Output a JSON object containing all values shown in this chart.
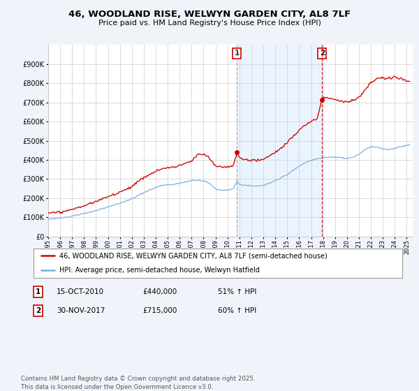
{
  "title": "46, WOODLAND RISE, WELWYN GARDEN CITY, AL8 7LF",
  "subtitle": "Price paid vs. HM Land Registry's House Price Index (HPI)",
  "property_label": "46, WOODLAND RISE, WELWYN GARDEN CITY, AL8 7LF (semi-detached house)",
  "hpi_label": "HPI: Average price, semi-detached house, Welwyn Hatfield",
  "footnote": "Contains HM Land Registry data © Crown copyright and database right 2025.\nThis data is licensed under the Open Government Licence v3.0.",
  "sale1_date": "15-OCT-2010",
  "sale1_price": "£440,000",
  "sale1_hpi": "51% ↑ HPI",
  "sale2_date": "30-NOV-2017",
  "sale2_price": "£715,000",
  "sale2_hpi": "60% ↑ HPI",
  "property_color": "#cc0000",
  "hpi_color": "#7aaadd",
  "vline1_color": "#aaaaaa",
  "vline2_color": "#cc0000",
  "shade_color": "#ddeeff",
  "background_color": "#f0f4fa",
  "plot_bg_color": "#ffffff",
  "ylim": [
    0,
    1000000
  ],
  "yticks": [
    0,
    100000,
    200000,
    300000,
    400000,
    500000,
    600000,
    700000,
    800000,
    900000
  ],
  "sale1_x": 2010.79,
  "sale2_x": 2017.92,
  "sale1_marker": 440000,
  "sale2_marker": 715000,
  "xmin": 1995,
  "xmax": 2025.5
}
